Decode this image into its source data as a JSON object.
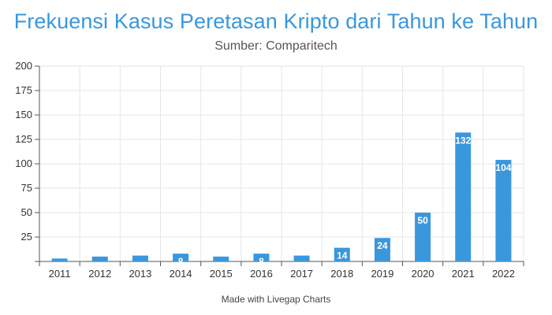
{
  "footer": "Made with Livegap Charts",
  "colors": {
    "bar": "#3a97dc",
    "title": "#3a97dc",
    "grid": "#e6e6e6",
    "axis": "#555555"
  },
  "chart_data": {
    "type": "bar",
    "title": "Frekuensi Kasus Peretasan Kripto dari Tahun ke Tahun",
    "subtitle": "Sumber: Comparitech",
    "xlabel": "",
    "ylabel": "",
    "categories": [
      "2011",
      "2012",
      "2013",
      "2014",
      "2015",
      "2016",
      "2017",
      "2018",
      "2019",
      "2020",
      "2021",
      "2022"
    ],
    "values": [
      3,
      5,
      6,
      8,
      5,
      8,
      6,
      14,
      24,
      50,
      132,
      104
    ],
    "data_labels": [
      "",
      "",
      "",
      "8",
      "",
      "8",
      "",
      "14",
      "24",
      "50",
      "132",
      "104"
    ],
    "ylim": [
      0,
      200
    ],
    "yticks": [
      0,
      25,
      50,
      75,
      100,
      125,
      150,
      175,
      200
    ],
    "ytick_labels": [
      "",
      "25",
      "50",
      "75",
      "100",
      "125",
      "150",
      "175",
      "200"
    ],
    "grid": true,
    "legend": "none"
  }
}
